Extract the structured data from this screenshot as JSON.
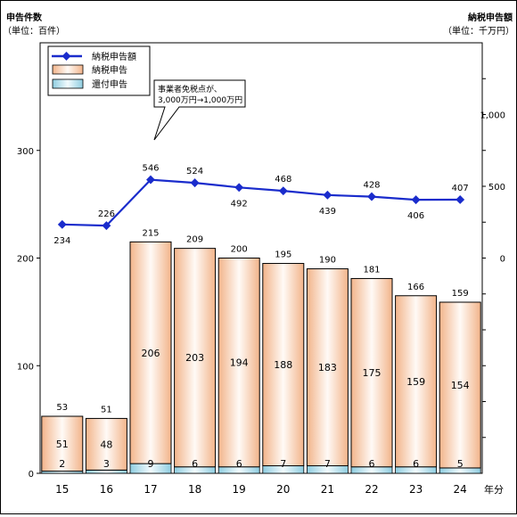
{
  "chart_data": {
    "type": "bar",
    "left_axis_title": [
      "申告件数",
      "（単位：百件）"
    ],
    "right_axis_title": [
      "納税申告額",
      "（単位：千万円）"
    ],
    "x_unit_label": "年分",
    "categories": [
      "15",
      "16",
      "17",
      "18",
      "19",
      "20",
      "21",
      "22",
      "23",
      "24"
    ],
    "ylim_left": [
      0,
      400
    ],
    "y_ticks_left": [
      "0",
      "100",
      "200",
      "300"
    ],
    "y_ticks_left_values": [
      0,
      100,
      200,
      300
    ],
    "ylim_right": [
      -1500,
      1500
    ],
    "y_ticks_right": [
      "0",
      "500",
      "1,000"
    ],
    "y_ticks_right_values": [
      0,
      500,
      1000
    ],
    "series": [
      {
        "name": "納税申告",
        "type": "bar",
        "values": [
          51,
          48,
          206,
          203,
          194,
          188,
          183,
          175,
          159,
          154
        ],
        "color": "#f4c29e"
      },
      {
        "name": "還付申告",
        "type": "bar",
        "values": [
          2,
          3,
          9,
          6,
          6,
          7,
          7,
          6,
          6,
          5
        ],
        "color": "#bfe3ee"
      },
      {
        "name": "納税申告額",
        "type": "line",
        "values": [
          234,
          226,
          546,
          524,
          492,
          468,
          439,
          428,
          406,
          407
        ],
        "color": "#1a2ccc"
      }
    ],
    "totals": [
      53,
      51,
      215,
      209,
      200,
      195,
      190,
      181,
      166,
      159
    ],
    "line_label_position": [
      "below",
      "above",
      "above",
      "above",
      "below",
      "above",
      "below",
      "above",
      "below",
      "above"
    ],
    "annotation": [
      "事業者免税点が、",
      "3,000万円→1,000万円"
    ],
    "legend_placement": "top-left",
    "grid": false
  }
}
